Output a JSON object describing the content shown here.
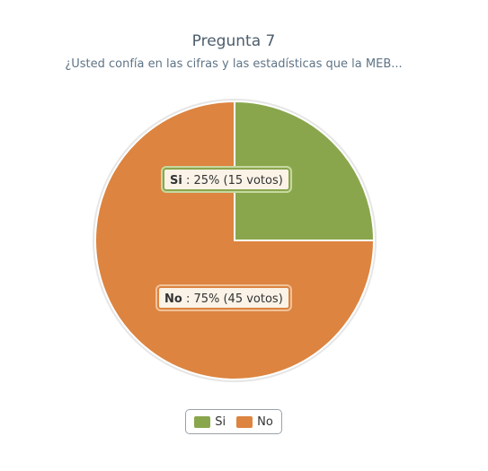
{
  "chart_data": {
    "type": "pie",
    "title": "Pregunta 7",
    "subtitle": "¿Usted confía en las cifras y las estadísticas que la MEB...",
    "slices": [
      {
        "name": "Si",
        "percent": 25,
        "votes": 15,
        "color": "#8aa64d",
        "label_text": "Si",
        "label_value": " : 25% (15 votos)"
      },
      {
        "name": "No",
        "percent": 75,
        "votes": 45,
        "color": "#dc8440",
        "label_text": "No",
        "label_value": " : 75% (45 votos)"
      }
    ],
    "legend": {
      "placement": "bottom-center",
      "items": [
        "Si",
        "No"
      ]
    }
  }
}
